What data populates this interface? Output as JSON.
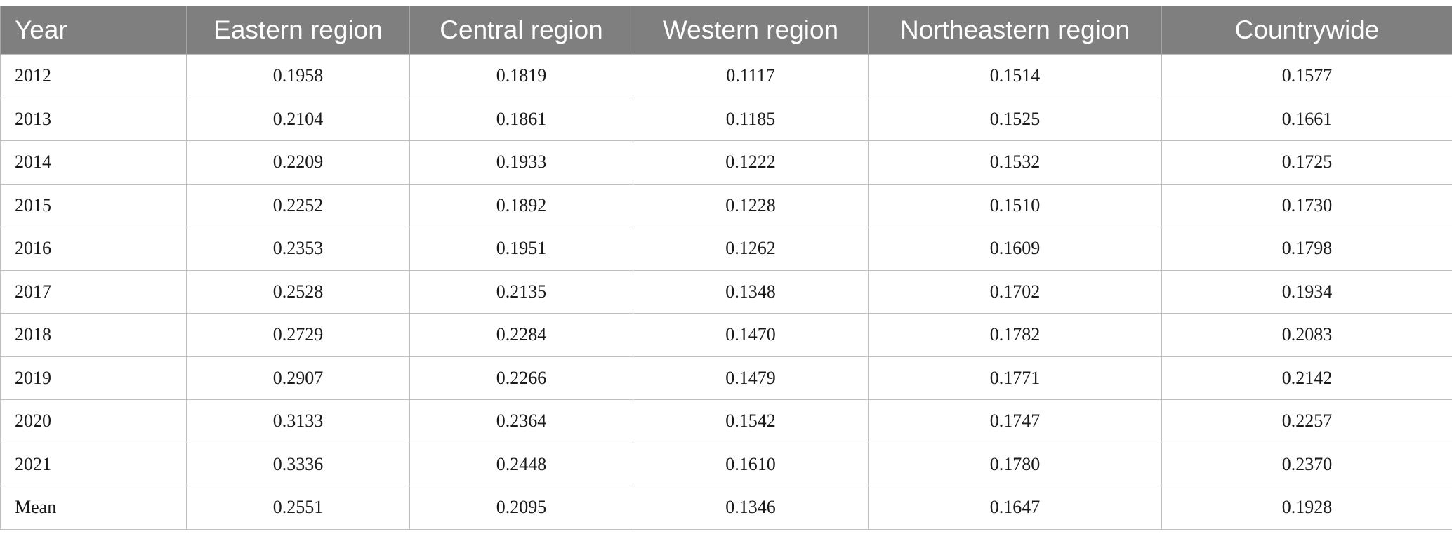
{
  "table": {
    "headers": [
      "Year",
      "Eastern region",
      "Central region",
      "Western region",
      "Northeastern region",
      "Countrywide"
    ],
    "rows": [
      [
        "2012",
        "0.1958",
        "0.1819",
        "0.1117",
        "0.1514",
        "0.1577"
      ],
      [
        "2013",
        "0.2104",
        "0.1861",
        "0.1185",
        "0.1525",
        "0.1661"
      ],
      [
        "2014",
        "0.2209",
        "0.1933",
        "0.1222",
        "0.1532",
        "0.1725"
      ],
      [
        "2015",
        "0.2252",
        "0.1892",
        "0.1228",
        "0.1510",
        "0.1730"
      ],
      [
        "2016",
        "0.2353",
        "0.1951",
        "0.1262",
        "0.1609",
        "0.1798"
      ],
      [
        "2017",
        "0.2528",
        "0.2135",
        "0.1348",
        "0.1702",
        "0.1934"
      ],
      [
        "2018",
        "0.2729",
        "0.2284",
        "0.1470",
        "0.1782",
        "0.2083"
      ],
      [
        "2019",
        "0.2907",
        "0.2266",
        "0.1479",
        "0.1771",
        "0.2142"
      ],
      [
        "2020",
        "0.3133",
        "0.2364",
        "0.1542",
        "0.1747",
        "0.2257"
      ],
      [
        "2021",
        "0.3336",
        "0.2448",
        "0.1610",
        "0.1780",
        "0.2370"
      ],
      [
        "Mean",
        "0.2551",
        "0.2095",
        "0.1346",
        "0.1647",
        "0.1928"
      ]
    ]
  }
}
